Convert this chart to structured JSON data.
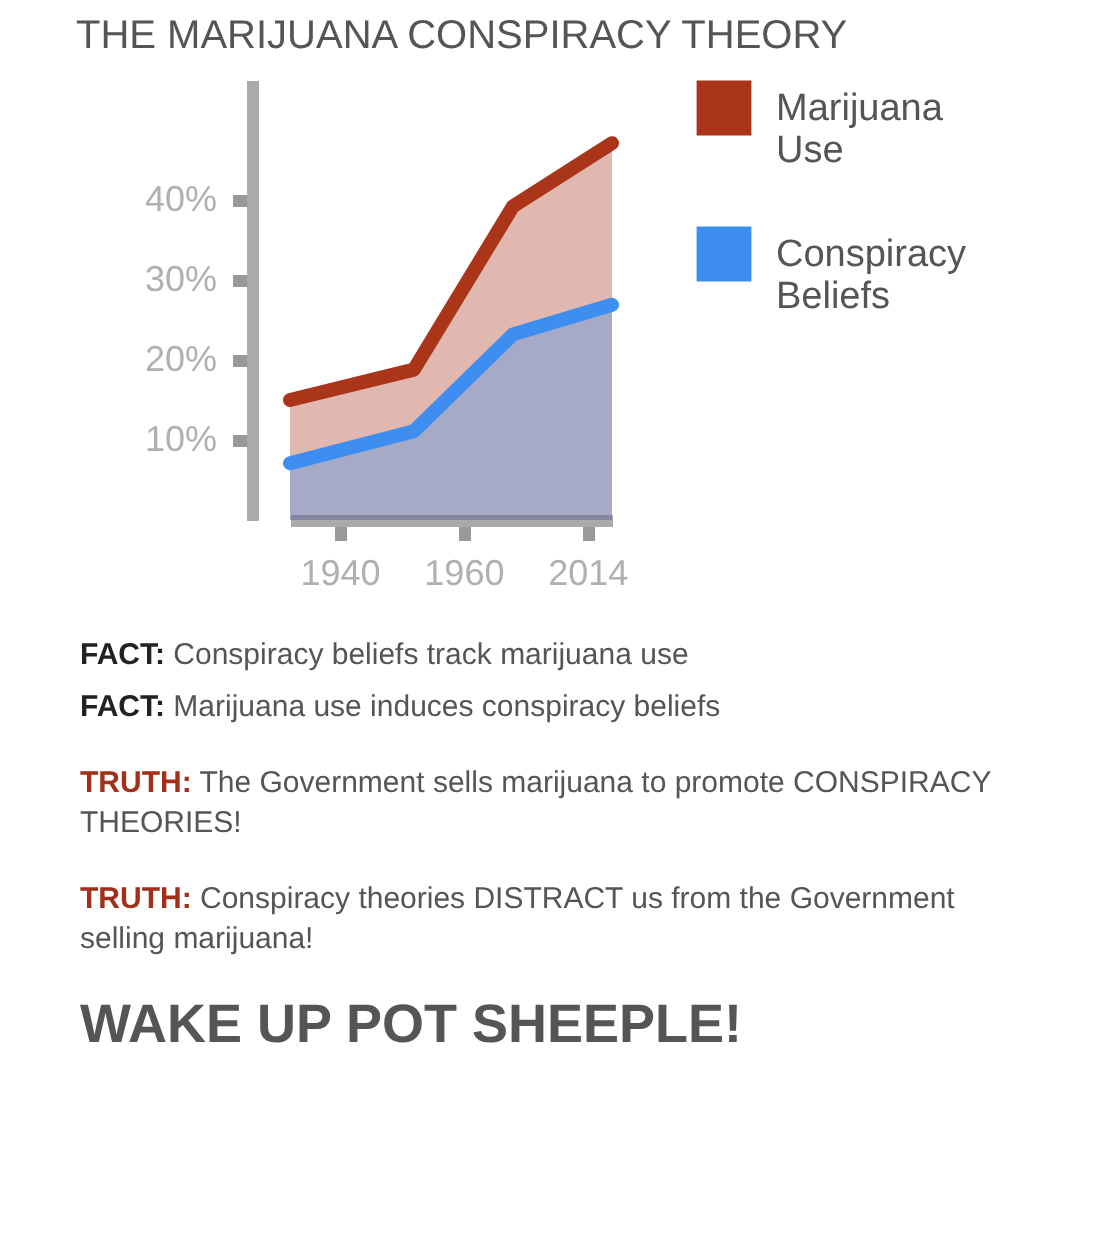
{
  "chart_data": {
    "type": "area",
    "title": "THE MARIJUANA CONSPIRACY THEORY",
    "categories": [
      null,
      null,
      "1940",
      null,
      null,
      null,
      null,
      "1960",
      null,
      null,
      null,
      null,
      "2014",
      null
    ],
    "ylim": [
      0,
      55
    ],
    "yticks": [
      {
        "value": 10,
        "label": "10%"
      },
      {
        "value": 20,
        "label": "20%"
      },
      {
        "value": 30,
        "label": "30%"
      },
      {
        "value": 40,
        "label": "40%"
      }
    ],
    "legend": "top right",
    "series": [
      {
        "name": "Marijuana Use",
        "color": "#aa3519",
        "values": [
          15,
          null,
          null,
          null,
          null,
          18.8,
          null,
          null,
          null,
          39.2,
          null,
          null,
          null,
          47.1
        ]
      },
      {
        "name": "Conspiracy Beliefs",
        "color": "#3d8ef0",
        "values": [
          7.1,
          null,
          null,
          null,
          null,
          11.1,
          null,
          null,
          null,
          23.2,
          null,
          null,
          null,
          26.9
        ]
      }
    ],
    "annotations": [
      "FACT: Conspiracy beliefs track marijuana use",
      "FACT: Marijuana use induces conspiracy beliefs",
      "TRUTH: The Government sells marijuana to promote CONSPIRACY THEORIES!",
      "TRUTH: Conspiracy theories DISTRACT us from the Government selling marijuana!",
      "WAKE UP POT SHEEPLE!"
    ]
  }
}
